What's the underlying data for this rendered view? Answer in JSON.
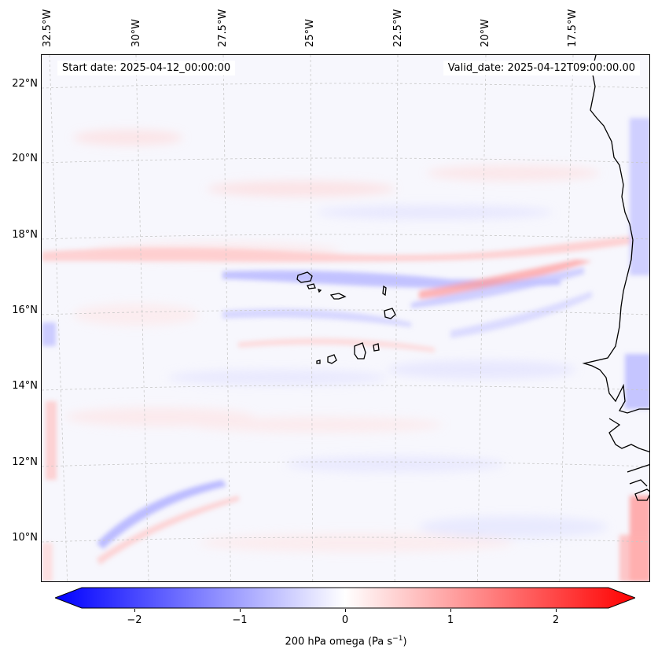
{
  "map": {
    "info": {
      "start_date": "Start date: 2025-04-12_00:00:00",
      "valid_date": "Valid_date: 2025-04-12T09:00:00.00"
    },
    "longitude_labels": [
      "32.5°W",
      "30°W",
      "27.5°W",
      "25°W",
      "22.5°W",
      "20°W",
      "17.5°W"
    ],
    "latitude_labels": [
      "22°N",
      "20°N",
      "18°N",
      "16°N",
      "14°N",
      "12°N",
      "10°N"
    ],
    "gridlines": true,
    "features": [
      "Cape Verde islands",
      "West African coastline"
    ],
    "colors": {
      "negative": "#0000ff",
      "zero": "#ffffff",
      "positive": "#ff0000",
      "coastline": "#000000",
      "gridline": "#c8c8c8"
    }
  },
  "colorbar": {
    "ticks": [
      "−2",
      "−1",
      "0",
      "1",
      "2"
    ],
    "label": "200 hPa omega (Pa s",
    "label_exp": "−1",
    "label_end": ")",
    "range": [
      -2.5,
      2.5
    ],
    "extend": "both",
    "colormap": "bwr"
  }
}
